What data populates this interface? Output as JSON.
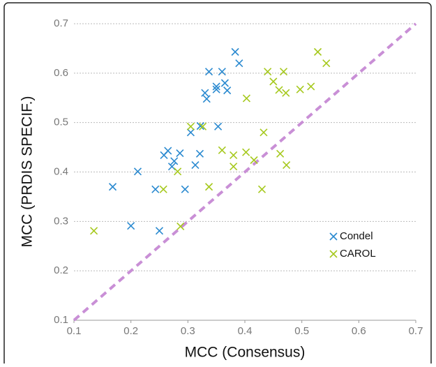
{
  "chart_data": {
    "type": "scatter",
    "x_label": "MCC (Consensus)",
    "y_label": "MCC (PRDIS SPECIF.)",
    "xlim": [
      0.1,
      0.7
    ],
    "ylim": [
      0.1,
      0.7
    ],
    "xticks": [
      0.1,
      0.2,
      0.3,
      0.4,
      0.5,
      0.6,
      0.7
    ],
    "yticks": [
      0.1,
      0.2,
      0.3,
      0.4,
      0.5,
      0.6,
      0.7
    ],
    "grid": true,
    "series": [
      {
        "name": "Condel",
        "color": "#2b8ad0",
        "x": [
          0.383,
          0.39,
          0.337,
          0.36,
          0.365,
          0.35,
          0.35,
          0.369,
          0.33,
          0.333,
          0.322,
          0.353,
          0.305,
          0.265,
          0.286,
          0.321,
          0.258,
          0.276,
          0.272,
          0.313,
          0.212,
          0.168,
          0.243,
          0.295,
          0.2,
          0.25
        ],
        "values": [
          0.643,
          0.62,
          0.603,
          0.603,
          0.58,
          0.573,
          0.567,
          0.565,
          0.56,
          0.548,
          0.493,
          0.492,
          0.48,
          0.443,
          0.438,
          0.437,
          0.434,
          0.422,
          0.411,
          0.414,
          0.401,
          0.37,
          0.365,
          0.365,
          0.291,
          0.281
        ]
      },
      {
        "name": "CAROL",
        "color": "#a6c91e",
        "x": [
          0.528,
          0.543,
          0.44,
          0.468,
          0.45,
          0.46,
          0.472,
          0.497,
          0.516,
          0.403,
          0.305,
          0.326,
          0.433,
          0.36,
          0.38,
          0.402,
          0.416,
          0.462,
          0.473,
          0.38,
          0.282,
          0.257,
          0.337,
          0.43,
          0.287,
          0.135
        ],
        "values": [
          0.643,
          0.62,
          0.603,
          0.603,
          0.583,
          0.566,
          0.56,
          0.567,
          0.573,
          0.549,
          0.492,
          0.492,
          0.48,
          0.444,
          0.434,
          0.44,
          0.424,
          0.437,
          0.414,
          0.411,
          0.401,
          0.365,
          0.37,
          0.365,
          0.29,
          0.281
        ]
      }
    ]
  }
}
